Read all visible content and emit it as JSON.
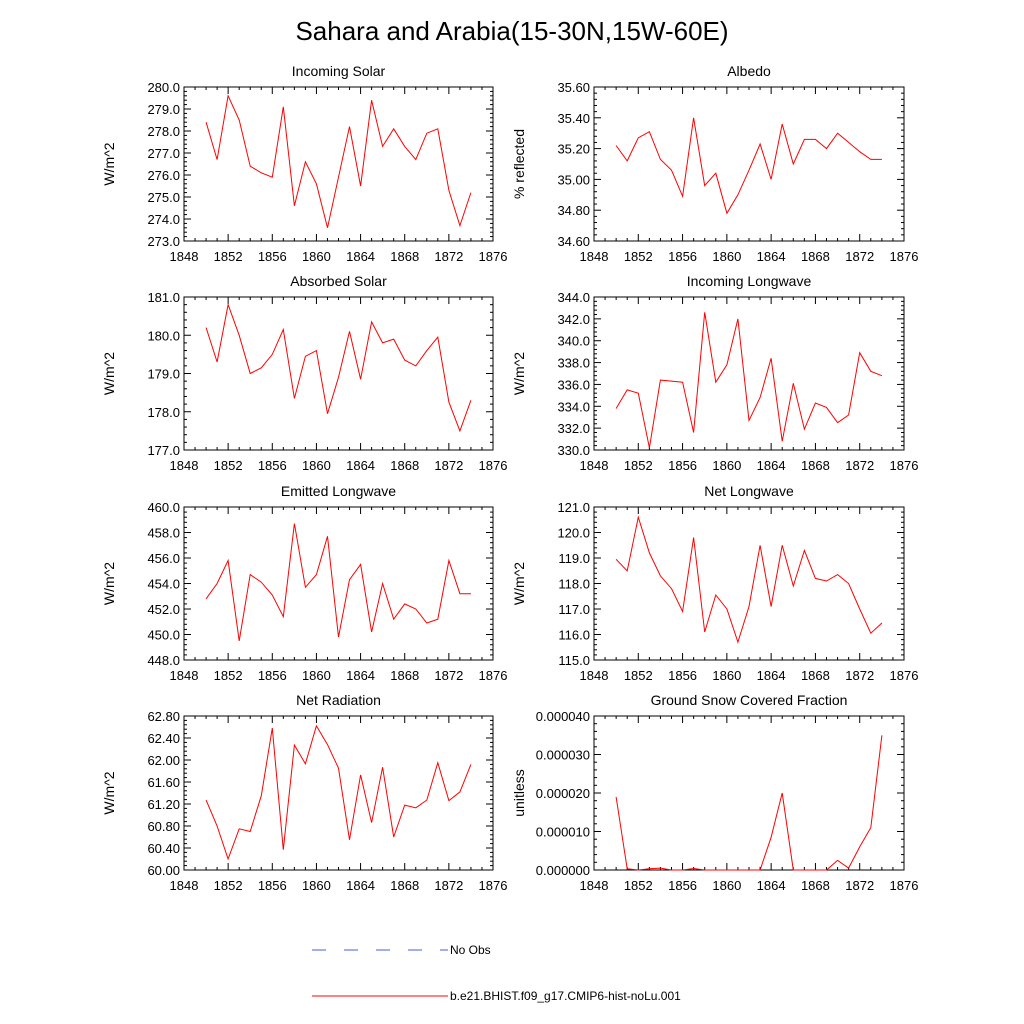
{
  "figure": {
    "title": "Sahara and Arabia(15-30N,15W-60E)"
  },
  "legend": {
    "items": [
      {
        "label": "No Obs",
        "color": "#4b5cc4",
        "style": "dashed"
      },
      {
        "label": "b.e21.BHIST.f09_g17.CMIP6-hist-noLu.001",
        "color": "#ff0000",
        "style": "solid"
      }
    ]
  },
  "chart_data": [
    {
      "type": "line",
      "title": "Incoming Solar",
      "ylabel": "W/m^2",
      "xlim": [
        1848,
        1876
      ],
      "ylim": [
        273.0,
        280.0
      ],
      "xticks": [
        1848,
        1852,
        1856,
        1860,
        1864,
        1868,
        1872,
        1876
      ],
      "xtick_labels": [
        "1848",
        "1852",
        "1856",
        "1860",
        "1864",
        "1868",
        "1872",
        "1876"
      ],
      "yticks": [
        273.0,
        274.0,
        275.0,
        276.0,
        277.0,
        278.0,
        279.0,
        280.0
      ],
      "ytick_labels": [
        "273.0",
        "274.0",
        "275.0",
        "276.0",
        "277.0",
        "278.0",
        "279.0",
        "280.0"
      ],
      "x": [
        1850,
        1851,
        1852,
        1853,
        1854,
        1855,
        1856,
        1857,
        1858,
        1859,
        1860,
        1861,
        1862,
        1863,
        1864,
        1865,
        1866,
        1867,
        1868,
        1869,
        1870,
        1871,
        1872,
        1873,
        1874
      ],
      "series": [
        {
          "name": "b.e21.BHIST.f09_g17.CMIP6-hist-noLu.001",
          "color": "#ff0000",
          "values": [
            278.4,
            276.7,
            279.6,
            278.5,
            276.4,
            276.1,
            275.9,
            279.1,
            274.6,
            276.6,
            275.6,
            273.6,
            275.9,
            278.2,
            275.5,
            279.4,
            277.3,
            278.1,
            277.3,
            276.7,
            277.9,
            278.1,
            275.3,
            273.7,
            275.2
          ]
        }
      ]
    },
    {
      "type": "line",
      "title": "Albedo",
      "ylabel": "% reflected",
      "xlim": [
        1848,
        1876
      ],
      "ylim": [
        34.6,
        35.6
      ],
      "xticks": [
        1848,
        1852,
        1856,
        1860,
        1864,
        1868,
        1872,
        1876
      ],
      "xtick_labels": [
        "1848",
        "1852",
        "1856",
        "1860",
        "1864",
        "1868",
        "1872",
        "1876"
      ],
      "yticks": [
        34.6,
        34.8,
        35.0,
        35.2,
        35.4,
        35.6
      ],
      "ytick_labels": [
        "34.60",
        "34.80",
        "35.00",
        "35.20",
        "35.40",
        "35.60"
      ],
      "x": [
        1850,
        1851,
        1852,
        1853,
        1854,
        1855,
        1856,
        1857,
        1858,
        1859,
        1860,
        1861,
        1862,
        1863,
        1864,
        1865,
        1866,
        1867,
        1868,
        1869,
        1870,
        1871,
        1872,
        1873,
        1874
      ],
      "series": [
        {
          "name": "b.e21.BHIST.f09_g17.CMIP6-hist-noLu.001",
          "color": "#ff0000",
          "values": [
            35.22,
            35.12,
            35.27,
            35.31,
            35.13,
            35.06,
            34.89,
            35.4,
            34.96,
            35.04,
            34.78,
            34.9,
            35.06,
            35.23,
            35.0,
            35.36,
            35.1,
            35.26,
            35.26,
            35.2,
            35.3,
            35.24,
            35.18,
            35.13,
            35.13
          ]
        }
      ]
    },
    {
      "type": "line",
      "title": "Absorbed Solar",
      "ylabel": "W/m^2",
      "xlim": [
        1848,
        1876
      ],
      "ylim": [
        177.0,
        181.0
      ],
      "xticks": [
        1848,
        1852,
        1856,
        1860,
        1864,
        1868,
        1872,
        1876
      ],
      "xtick_labels": [
        "1848",
        "1852",
        "1856",
        "1860",
        "1864",
        "1868",
        "1872",
        "1876"
      ],
      "yticks": [
        177.0,
        178.0,
        179.0,
        180.0,
        181.0
      ],
      "ytick_labels": [
        "177.0",
        "178.0",
        "179.0",
        "180.0",
        "181.0"
      ],
      "x": [
        1850,
        1851,
        1852,
        1853,
        1854,
        1855,
        1856,
        1857,
        1858,
        1859,
        1860,
        1861,
        1862,
        1863,
        1864,
        1865,
        1866,
        1867,
        1868,
        1869,
        1870,
        1871,
        1872,
        1873,
        1874
      ],
      "series": [
        {
          "name": "b.e21.BHIST.f09_g17.CMIP6-hist-noLu.001",
          "color": "#ff0000",
          "values": [
            180.2,
            179.3,
            180.8,
            180.0,
            179.0,
            179.15,
            179.5,
            180.15,
            178.35,
            179.45,
            179.6,
            177.95,
            178.9,
            180.1,
            178.85,
            180.35,
            179.8,
            179.9,
            179.35,
            179.2,
            179.6,
            179.95,
            178.25,
            177.5,
            178.3
          ]
        }
      ]
    },
    {
      "type": "line",
      "title": "Incoming Longwave",
      "ylabel": "W/m^2",
      "xlim": [
        1848,
        1876
      ],
      "ylim": [
        330.0,
        344.0
      ],
      "xticks": [
        1848,
        1852,
        1856,
        1860,
        1864,
        1868,
        1872,
        1876
      ],
      "xtick_labels": [
        "1848",
        "1852",
        "1856",
        "1860",
        "1864",
        "1868",
        "1872",
        "1876"
      ],
      "yticks": [
        330.0,
        332.0,
        334.0,
        336.0,
        338.0,
        340.0,
        342.0,
        344.0
      ],
      "ytick_labels": [
        "330.0",
        "332.0",
        "334.0",
        "336.0",
        "338.0",
        "340.0",
        "342.0",
        "344.0"
      ],
      "x": [
        1850,
        1851,
        1852,
        1853,
        1854,
        1855,
        1856,
        1857,
        1858,
        1859,
        1860,
        1861,
        1862,
        1863,
        1864,
        1865,
        1866,
        1867,
        1868,
        1869,
        1870,
        1871,
        1872,
        1873,
        1874
      ],
      "series": [
        {
          "name": "b.e21.BHIST.f09_g17.CMIP6-hist-noLu.001",
          "color": "#ff0000",
          "values": [
            333.8,
            335.5,
            335.2,
            330.2,
            336.4,
            336.3,
            336.2,
            331.6,
            342.6,
            336.2,
            337.8,
            342.0,
            332.7,
            334.8,
            338.4,
            330.8,
            336.1,
            331.9,
            334.3,
            333.9,
            332.5,
            333.2,
            338.9,
            337.2,
            336.8
          ]
        }
      ]
    },
    {
      "type": "line",
      "title": "Emitted Longwave",
      "ylabel": "W/m^2",
      "xlim": [
        1848,
        1876
      ],
      "ylim": [
        448.0,
        460.0
      ],
      "xticks": [
        1848,
        1852,
        1856,
        1860,
        1864,
        1868,
        1872,
        1876
      ],
      "xtick_labels": [
        "1848",
        "1852",
        "1856",
        "1860",
        "1864",
        "1868",
        "1872",
        "1876"
      ],
      "yticks": [
        448.0,
        450.0,
        452.0,
        454.0,
        456.0,
        458.0,
        460.0
      ],
      "ytick_labels": [
        "448.0",
        "450.0",
        "452.0",
        "454.0",
        "456.0",
        "458.0",
        "460.0"
      ],
      "x": [
        1850,
        1851,
        1852,
        1853,
        1854,
        1855,
        1856,
        1857,
        1858,
        1859,
        1860,
        1861,
        1862,
        1863,
        1864,
        1865,
        1866,
        1867,
        1868,
        1869,
        1870,
        1871,
        1872,
        1873,
        1874
      ],
      "series": [
        {
          "name": "b.e21.BHIST.f09_g17.CMIP6-hist-noLu.001",
          "color": "#ff0000",
          "values": [
            452.8,
            454.0,
            455.8,
            449.5,
            454.7,
            454.1,
            453.1,
            451.4,
            458.7,
            453.7,
            454.7,
            457.7,
            449.8,
            454.3,
            455.5,
            450.2,
            454.0,
            451.2,
            452.4,
            452.0,
            450.9,
            451.2,
            455.8,
            453.2,
            453.2
          ]
        }
      ]
    },
    {
      "type": "line",
      "title": "Net Longwave",
      "ylabel": "W/m^2",
      "xlim": [
        1848,
        1876
      ],
      "ylim": [
        115.0,
        121.0
      ],
      "xticks": [
        1848,
        1852,
        1856,
        1860,
        1864,
        1868,
        1872,
        1876
      ],
      "xtick_labels": [
        "1848",
        "1852",
        "1856",
        "1860",
        "1864",
        "1868",
        "1872",
        "1876"
      ],
      "yticks": [
        115.0,
        116.0,
        117.0,
        118.0,
        119.0,
        120.0,
        121.0
      ],
      "ytick_labels": [
        "115.0",
        "116.0",
        "117.0",
        "118.0",
        "119.0",
        "120.0",
        "121.0"
      ],
      "x": [
        1850,
        1851,
        1852,
        1853,
        1854,
        1855,
        1856,
        1857,
        1858,
        1859,
        1860,
        1861,
        1862,
        1863,
        1864,
        1865,
        1866,
        1867,
        1868,
        1869,
        1870,
        1871,
        1872,
        1873,
        1874
      ],
      "series": [
        {
          "name": "b.e21.BHIST.f09_g17.CMIP6-hist-noLu.001",
          "color": "#ff0000",
          "values": [
            118.95,
            118.5,
            120.6,
            119.2,
            118.3,
            117.8,
            116.9,
            119.8,
            116.1,
            117.55,
            117.0,
            115.7,
            117.1,
            119.5,
            117.1,
            119.5,
            117.9,
            119.3,
            118.2,
            118.1,
            118.35,
            118.0,
            117.0,
            116.05,
            116.45
          ]
        }
      ]
    },
    {
      "type": "line",
      "title": "Net Radiation",
      "ylabel": "W/m^2",
      "xlim": [
        1848,
        1876
      ],
      "ylim": [
        60.0,
        62.8
      ],
      "xticks": [
        1848,
        1852,
        1856,
        1860,
        1864,
        1868,
        1872,
        1876
      ],
      "xtick_labels": [
        "1848",
        "1852",
        "1856",
        "1860",
        "1864",
        "1868",
        "1872",
        "1876"
      ],
      "yticks": [
        60.0,
        60.4,
        60.8,
        61.2,
        61.6,
        62.0,
        62.4,
        62.8
      ],
      "ytick_labels": [
        "60.00",
        "60.40",
        "60.80",
        "61.20",
        "61.60",
        "62.00",
        "62.40",
        "62.80"
      ],
      "x": [
        1850,
        1851,
        1852,
        1853,
        1854,
        1855,
        1856,
        1857,
        1858,
        1859,
        1860,
        1861,
        1862,
        1863,
        1864,
        1865,
        1866,
        1867,
        1868,
        1869,
        1870,
        1871,
        1872,
        1873,
        1874
      ],
      "series": [
        {
          "name": "b.e21.BHIST.f09_g17.CMIP6-hist-noLu.001",
          "color": "#ff0000",
          "values": [
            61.27,
            60.8,
            60.2,
            60.75,
            60.7,
            61.35,
            62.58,
            60.37,
            62.27,
            61.93,
            62.62,
            62.28,
            61.85,
            60.55,
            61.73,
            60.86,
            61.87,
            60.6,
            61.18,
            61.13,
            61.27,
            61.95,
            61.26,
            61.42,
            61.92
          ]
        }
      ]
    },
    {
      "type": "line",
      "title": "Ground Snow Covered Fraction",
      "ylabel": "unitless",
      "xlim": [
        1848,
        1876
      ],
      "ylim": [
        0,
        4e-05
      ],
      "xticks": [
        1848,
        1852,
        1856,
        1860,
        1864,
        1868,
        1872,
        1876
      ],
      "xtick_labels": [
        "1848",
        "1852",
        "1856",
        "1860",
        "1864",
        "1868",
        "1872",
        "1876"
      ],
      "yticks": [
        0,
        1e-05,
        2e-05,
        3e-05,
        4e-05
      ],
      "ytick_labels": [
        "0.000000",
        "0.000010",
        "0.000020",
        "0.000030",
        "0.000040"
      ],
      "x": [
        1850,
        1851,
        1852,
        1853,
        1854,
        1855,
        1856,
        1857,
        1858,
        1859,
        1860,
        1861,
        1862,
        1863,
        1864,
        1865,
        1866,
        1867,
        1868,
        1869,
        1870,
        1871,
        1872,
        1873,
        1874
      ],
      "series": [
        {
          "name": "b.e21.BHIST.f09_g17.CMIP6-hist-noLu.001",
          "color": "#ff0000",
          "values": [
            1.9e-05,
            3e-07,
            0.0,
            3e-07,
            5e-07,
            0.0,
            0.0,
            4e-07,
            0.0,
            0.0,
            0.0,
            0.0,
            0.0,
            0.0,
            8.5e-06,
            2e-05,
            0.0,
            0.0,
            0.0,
            0.0,
            2.5e-06,
            5e-07,
            6e-06,
            1.1e-05,
            3.5e-05
          ]
        }
      ]
    }
  ]
}
